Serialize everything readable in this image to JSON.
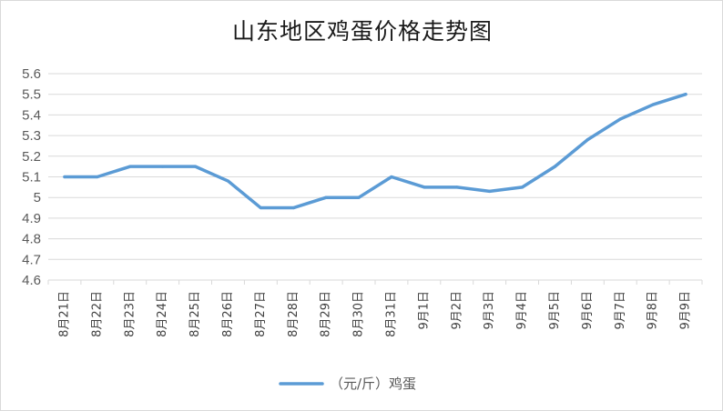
{
  "chart_data": {
    "type": "line",
    "title": "山东地区鸡蛋价格走势图",
    "categories": [
      "8月21日",
      "8月22日",
      "8月23日",
      "8月24日",
      "8月25日",
      "8月26日",
      "8月27日",
      "8月28日",
      "8月29日",
      "8月30日",
      "8月31日",
      "9月1日",
      "9月2日",
      "9月3日",
      "9月4日",
      "9月5日",
      "9月6日",
      "9月7日",
      "9月8日",
      "9月9日"
    ],
    "series": [
      {
        "name": "（元/斤）鸡蛋",
        "values": [
          5.1,
          5.1,
          5.15,
          5.15,
          5.15,
          5.08,
          4.95,
          4.95,
          5.0,
          5.0,
          5.1,
          5.05,
          5.05,
          5.03,
          5.05,
          5.15,
          5.28,
          5.38,
          5.45,
          5.5
        ]
      }
    ],
    "ylim": [
      4.6,
      5.6
    ],
    "yticks": [
      "4.6",
      "4.7",
      "4.8",
      "4.9",
      "5",
      "5.1",
      "5.2",
      "5.3",
      "5.4",
      "5.5",
      "5.6"
    ],
    "grid": true,
    "legend": "bottom",
    "line_color": "#5b9bd5",
    "grid_color": "#d9d9d9"
  }
}
